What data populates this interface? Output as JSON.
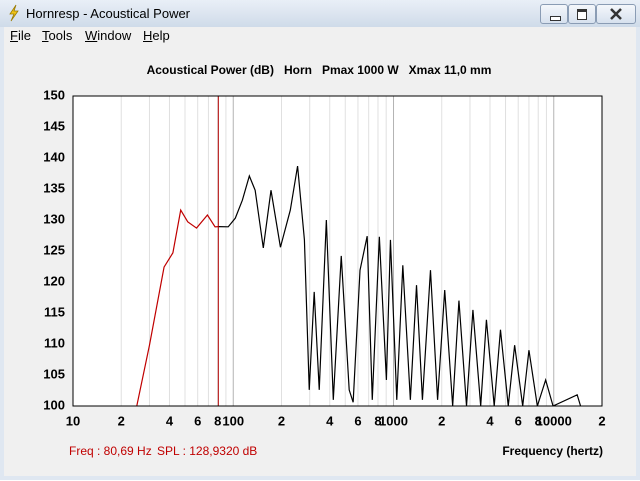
{
  "window": {
    "title": "Hornresp - Acoustical Power",
    "menu": [
      "File",
      "Tools",
      "Window",
      "Help"
    ]
  },
  "chart_data": {
    "type": "line",
    "title": "Acoustical Power (dB)   Horn   Pmax 1000 W   Xmax 11,0 mm",
    "x_label": "Frequency (hertz)",
    "xscale": "log",
    "xlim": [
      10,
      20000
    ],
    "ylim": [
      100,
      150
    ],
    "yticks": [
      100,
      105,
      110,
      115,
      120,
      125,
      130,
      135,
      140,
      145,
      150
    ],
    "xticks": [
      10,
      {
        "value": 20,
        "label": "2"
      },
      {
        "value": 40,
        "label": "4"
      },
      {
        "value": 60,
        "label": "6"
      },
      {
        "value": 80,
        "label": "8"
      },
      100,
      {
        "value": 200,
        "label": "2"
      },
      {
        "value": 400,
        "label": "4"
      },
      {
        "value": 600,
        "label": "6"
      },
      {
        "value": 800,
        "label": "8"
      },
      1000,
      {
        "value": 2000,
        "label": "2"
      },
      {
        "value": 4000,
        "label": "4"
      },
      {
        "value": 6000,
        "label": "6"
      },
      {
        "value": 8000,
        "label": "8"
      },
      10000,
      {
        "value": 20000,
        "label": "2"
      }
    ],
    "xminor": [
      30,
      50,
      70,
      90,
      300,
      500,
      700,
      900,
      3000,
      5000,
      7000,
      9000
    ],
    "grid": true,
    "cursor": {
      "x": 80.69,
      "color": "#b00000"
    },
    "series": [
      {
        "color": "#c00000",
        "x": [
          25,
          30,
          37,
          42,
          47,
          52,
          59,
          69,
          77,
          80.69
        ],
        "values": [
          100,
          109.8,
          122.4,
          124.7,
          131.6,
          129.7,
          128.7,
          130.8,
          128.9,
          128.93
        ]
      },
      {
        "color": "#000000",
        "x": [
          80.69,
          93,
          103,
          114,
          126,
          137,
          154,
          172,
          197,
          227,
          252,
          278,
          298,
          320,
          344,
          381,
          421,
          472,
          529,
          560,
          618,
          685,
          737,
          816,
          903,
          957,
          1048,
          1143,
          1274,
          1392,
          1515,
          1701,
          1884,
          2087,
          2340,
          2560,
          2855,
          3130,
          3500,
          3800,
          4250,
          4650,
          5200,
          5700,
          6400,
          7000,
          7900,
          8900,
          9900,
          14000,
          14700
        ],
        "values": [
          128.93,
          128.9,
          130.3,
          133.2,
          137.1,
          134.8,
          125.5,
          134.8,
          125.6,
          131.6,
          138.7,
          126.8,
          102.6,
          118.4,
          102.6,
          130,
          101,
          124.2,
          102.6,
          100.6,
          121.9,
          127.4,
          101,
          127.3,
          104.2,
          126.8,
          101,
          122.7,
          101,
          119.5,
          101,
          121.9,
          101,
          118.7,
          100,
          117,
          100,
          115.5,
          100,
          113.9,
          100,
          112.3,
          100,
          109.8,
          100,
          109,
          100,
          104.2,
          100,
          101.8,
          100
        ]
      }
    ]
  },
  "status": {
    "freq": "Freq : 80,69 Hz",
    "spl": "SPL : 128,9320 dB"
  }
}
